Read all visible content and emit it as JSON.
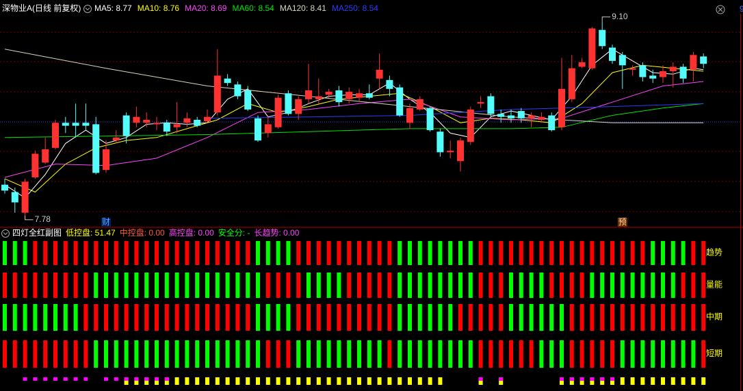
{
  "header": {
    "corner_mark": "9"
  },
  "chart_data": [
    {
      "type": "candlestick",
      "title": "深物业A(日线 前复权)",
      "ylim": [
        7.71,
        9.15
      ],
      "up_color": "#ff3232",
      "down_color": "#54fcfc",
      "open": [
        7.99,
        7.94,
        7.8,
        8.04,
        8.14,
        8.24,
        8.41,
        8.41,
        8.41,
        8.4,
        8.09,
        8.29,
        8.46,
        8.41,
        8.41,
        8.4,
        8.41,
        8.38,
        8.41,
        8.43,
        8.42,
        8.48,
        8.71,
        8.67,
        8.63,
        8.44,
        8.34,
        8.38,
        8.61,
        8.47,
        8.57,
        8.57,
        8.6,
        8.63,
        8.57,
        8.58,
        8.61,
        8.71,
        8.7,
        8.65,
        8.41,
        8.5,
        8.51,
        8.35,
        8.21,
        8.15,
        8.28,
        8.54,
        8.59,
        8.47,
        8.46,
        8.49,
        8.44,
        8.43,
        8.46,
        8.38,
        8.57,
        8.79,
        8.78,
        9.04,
        8.92,
        8.87,
        8.77,
        8.8,
        8.73,
        8.72,
        8.76,
        8.79,
        8.77,
        8.86
      ],
      "high": [
        8.03,
        7.97,
        8.03,
        8.22,
        8.31,
        8.43,
        8.45,
        8.54,
        8.54,
        8.45,
        8.29,
        8.36,
        8.48,
        8.52,
        8.48,
        8.45,
        8.43,
        8.55,
        8.48,
        8.45,
        8.5,
        8.91,
        8.74,
        8.69,
        8.66,
        8.46,
        8.46,
        8.6,
        8.63,
        8.59,
        8.81,
        8.71,
        8.64,
        8.66,
        8.65,
        8.64,
        8.67,
        8.88,
        8.73,
        8.67,
        8.54,
        8.59,
        8.52,
        8.37,
        8.29,
        8.31,
        8.52,
        8.59,
        8.61,
        8.5,
        8.5,
        8.51,
        8.48,
        8.48,
        8.48,
        8.85,
        8.87,
        8.85,
        9.06,
        9.1,
        8.94,
        8.89,
        8.8,
        8.82,
        8.77,
        8.8,
        8.82,
        8.81,
        8.89,
        8.88
      ],
      "low": [
        7.93,
        7.8,
        7.78,
        8.03,
        8.13,
        8.23,
        8.34,
        8.31,
        8.36,
        8.06,
        8.07,
        8.27,
        8.27,
        8.38,
        8.38,
        8.36,
        8.32,
        8.34,
        8.38,
        8.38,
        8.41,
        8.46,
        8.66,
        8.57,
        8.49,
        8.28,
        8.31,
        8.37,
        8.46,
        8.43,
        8.54,
        8.54,
        8.58,
        8.52,
        8.54,
        8.55,
        8.57,
        8.64,
        8.59,
        8.45,
        8.37,
        8.49,
        8.35,
        8.18,
        8.17,
        8.08,
        8.26,
        8.51,
        8.45,
        8.41,
        8.41,
        8.41,
        8.38,
        8.41,
        8.35,
        8.36,
        8.55,
        8.78,
        8.77,
        8.91,
        8.81,
        8.64,
        8.73,
        8.69,
        8.68,
        8.68,
        8.65,
        8.68,
        8.69,
        8.78
      ],
      "close": [
        7.95,
        7.87,
        8.01,
        8.2,
        8.23,
        8.41,
        8.39,
        8.39,
        8.39,
        8.07,
        8.23,
        8.31,
        8.32,
        8.45,
        8.43,
        8.41,
        8.35,
        8.4,
        8.44,
        8.39,
        8.45,
        8.73,
        8.68,
        8.59,
        8.5,
        8.29,
        8.4,
        8.58,
        8.47,
        8.57,
        8.63,
        8.59,
        8.62,
        8.55,
        8.62,
        8.61,
        8.58,
        8.77,
        8.64,
        8.46,
        8.51,
        8.57,
        8.36,
        8.21,
        8.22,
        8.29,
        8.5,
        8.55,
        8.47,
        8.45,
        8.44,
        8.44,
        8.46,
        8.45,
        8.36,
        8.64,
        8.78,
        8.82,
        9.05,
        8.93,
        8.83,
        8.8,
        8.78,
        8.72,
        8.71,
        8.76,
        8.79,
        8.71,
        8.87,
        8.81
      ],
      "series": [
        {
          "name": "MA5: 8.77",
          "color": "#ffffff",
          "x": [
            0,
            2,
            4,
            6,
            8,
            10,
            12,
            14,
            16,
            18,
            20,
            22,
            24,
            26,
            28,
            30,
            32,
            34,
            36,
            38,
            40,
            42,
            44,
            46,
            48,
            50,
            52,
            54,
            56,
            58,
            60,
            62,
            64,
            66,
            68,
            69
          ],
          "values": [
            7.99,
            7.9,
            8.06,
            8.27,
            8.36,
            8.27,
            8.31,
            8.4,
            8.41,
            8.4,
            8.41,
            8.57,
            8.64,
            8.45,
            8.48,
            8.54,
            8.59,
            8.6,
            8.6,
            8.68,
            8.57,
            8.48,
            8.34,
            8.31,
            8.45,
            8.49,
            8.46,
            8.43,
            8.59,
            8.8,
            8.91,
            8.83,
            8.75,
            8.74,
            8.78,
            8.77
          ]
        },
        {
          "name": "MA10: 8.76",
          "color": "#ffff00",
          "x": [
            0,
            3,
            6,
            9,
            12,
            15,
            18,
            21,
            24,
            27,
            30,
            33,
            36,
            39,
            42,
            45,
            48,
            51,
            54,
            57,
            60,
            63,
            66,
            69
          ],
          "values": [
            8.03,
            7.94,
            8.13,
            8.24,
            8.29,
            8.31,
            8.37,
            8.43,
            8.54,
            8.48,
            8.52,
            8.57,
            8.59,
            8.61,
            8.52,
            8.41,
            8.44,
            8.43,
            8.41,
            8.54,
            8.75,
            8.8,
            8.78,
            8.76
          ]
        },
        {
          "name": "MA20: 8.69",
          "color": "#ff44ff",
          "x": [
            0,
            5,
            10,
            15,
            20,
            25,
            30,
            35,
            40,
            45,
            50,
            55,
            60,
            65,
            69
          ],
          "values": [
            8.04,
            8.13,
            8.12,
            8.17,
            8.31,
            8.48,
            8.5,
            8.54,
            8.57,
            8.45,
            8.43,
            8.44,
            8.55,
            8.66,
            8.69
          ]
        },
        {
          "name": "MA60: 8.54",
          "color": "#00e600",
          "x": [
            0,
            10,
            20,
            30,
            40,
            50,
            55,
            60,
            65,
            69
          ],
          "values": [
            8.31,
            8.32,
            8.33,
            8.35,
            8.37,
            8.37,
            8.38,
            8.46,
            8.51,
            8.54
          ]
        },
        {
          "name": "MA120: 8.41",
          "color": "#d8d8c0",
          "x": [
            0,
            10,
            20,
            30,
            40,
            50,
            60,
            69
          ],
          "values": [
            8.91,
            8.78,
            8.66,
            8.59,
            8.52,
            8.45,
            8.41,
            8.41
          ]
        },
        {
          "name": "MA250: 8.54",
          "color": "#2a3cff",
          "x": [
            20,
            30,
            40,
            50,
            60,
            69
          ],
          "values": [
            8.44,
            8.45,
            8.46,
            8.5,
            8.52,
            8.54
          ]
        }
      ],
      "annotations": [
        {
          "x": 59,
          "value": 9.1,
          "label": "9.10"
        },
        {
          "x": 2,
          "value": 7.78,
          "label": "7.78"
        }
      ],
      "events": [
        {
          "x": 10,
          "label": "财",
          "color": "#5aa0ff"
        },
        {
          "x": 61,
          "label": "预",
          "color": "#ffd8a0"
        }
      ]
    },
    {
      "type": "signal-grid",
      "title": "四灯全红副图",
      "red": "#ff0000",
      "green": "#00ff00",
      "magenta": "#ff00ff",
      "yellow": "#ffff00",
      "indicators": [
        {
          "text": "低控盘: 51.47",
          "color": "#ffff00"
        },
        {
          "text": "中控盘: 0.00",
          "color": "#ff5a3c"
        },
        {
          "text": "高控盘: 0.00",
          "color": "#ff44ff"
        },
        {
          "text": "安全分: -",
          "color": "#00ff00"
        },
        {
          "text": "长趋势: 0.00",
          "color": "#ff44ff"
        }
      ],
      "rows": [
        {
          "name": "趋势",
          "states": [
            "G",
            "G",
            "G",
            "R",
            "R",
            "R",
            "R",
            "R",
            "R",
            "R",
            "R",
            "R",
            "R",
            "R",
            "R",
            "R",
            "R",
            "R",
            "R",
            "R",
            "R",
            "R",
            "R",
            "R",
            "R",
            "G",
            "G",
            "G",
            "G",
            "R",
            "R",
            "R",
            "R",
            "R",
            "R",
            "R",
            "R",
            "R",
            "R",
            "G",
            "G",
            "G",
            "G",
            "G",
            "G",
            "G",
            "G",
            "R",
            "R",
            "R",
            "R",
            "R",
            "R",
            "R",
            "R",
            "R",
            "R",
            "R",
            "R",
            "R",
            "R",
            "R",
            "R",
            "R",
            "G",
            "G",
            "G",
            "G",
            "R",
            "R"
          ]
        },
        {
          "name": "量能",
          "states": [
            "R",
            "R",
            "R",
            "R",
            "R",
            "R",
            "R",
            "R",
            "R",
            "G",
            "G",
            "G",
            "G",
            "G",
            "G",
            "G",
            "G",
            "G",
            "G",
            "G",
            "G",
            "G",
            "G",
            "G",
            "G",
            "G",
            "R",
            "R",
            "R",
            "R",
            "G",
            "G",
            "G",
            "G",
            "R",
            "R",
            "R",
            "R",
            "R",
            "G",
            "G",
            "G",
            "G",
            "G",
            "G",
            "G",
            "G",
            "R",
            "R",
            "R",
            "G",
            "G",
            "G",
            "G",
            "R",
            "R",
            "R",
            "R",
            "G",
            "G",
            "G",
            "G",
            "G",
            "G",
            "G",
            "G",
            "G",
            "R",
            "R",
            "R"
          ]
        },
        {
          "name": "中期",
          "states": [
            "G",
            "G",
            "G",
            "G",
            "G",
            "G",
            "G",
            "G",
            "R",
            "R",
            "R",
            "R",
            "R",
            "R",
            "R",
            "R",
            "R",
            "R",
            "R",
            "R",
            "R",
            "R",
            "R",
            "R",
            "R",
            "G",
            "G",
            "G",
            "G",
            "R",
            "R",
            "R",
            "R",
            "R",
            "R",
            "R",
            "R",
            "R",
            "R",
            "G",
            "G",
            "G",
            "G",
            "G",
            "G",
            "R",
            "R",
            "R",
            "R",
            "R",
            "G",
            "G",
            "G",
            "G",
            "G",
            "G",
            "R",
            "R",
            "R",
            "R",
            "R",
            "R",
            "R",
            "R",
            "R",
            "R",
            "R",
            "R",
            "R",
            "R"
          ]
        },
        {
          "name": "短期",
          "states": [
            "R",
            "R",
            "R",
            "R",
            "R",
            "R",
            "R",
            "R",
            "R",
            "G",
            "G",
            "G",
            "G",
            "G",
            "G",
            "G",
            "G",
            "G",
            "G",
            "G",
            "G",
            "G",
            "G",
            "G",
            "G",
            "G",
            "R",
            "R",
            "R",
            "G",
            "G",
            "G",
            "G",
            "G",
            "G",
            "G",
            "G",
            "G",
            "R",
            "G",
            "G",
            "G",
            "G",
            "G",
            "G",
            "G",
            "G",
            "R",
            "R",
            "R",
            "R",
            "R",
            "R",
            "G",
            "G",
            "G",
            "R",
            "R",
            "R",
            "R",
            "R",
            "G",
            "G",
            "G",
            "G",
            "G",
            "G",
            "G",
            "G",
            "R"
          ]
        }
      ],
      "signals": [
        null,
        null,
        "M",
        "M",
        "M",
        "M",
        "M",
        "M",
        "M",
        null,
        "M",
        "M",
        "MY",
        "MY",
        "MY",
        "MY",
        "MY",
        "Y",
        "Y",
        "Y",
        "Y",
        "Y",
        "Y",
        "Y",
        "Y",
        "Y",
        "Y",
        "Y",
        "Y",
        "Y",
        "Y",
        "Y",
        "Y",
        "Y",
        "Y",
        "Y",
        "Y",
        "Y",
        "Y",
        "Y",
        "Y",
        "Y",
        "Y",
        "Y",
        null,
        null,
        null,
        "MY",
        null,
        "MY",
        null,
        null,
        null,
        null,
        null,
        "MY",
        "MY",
        "MY",
        "MY",
        "MY",
        "MY",
        "Y",
        "Y",
        "Y",
        "Y",
        "Y",
        "Y",
        "Y",
        "Y",
        "Y"
      ]
    }
  ]
}
